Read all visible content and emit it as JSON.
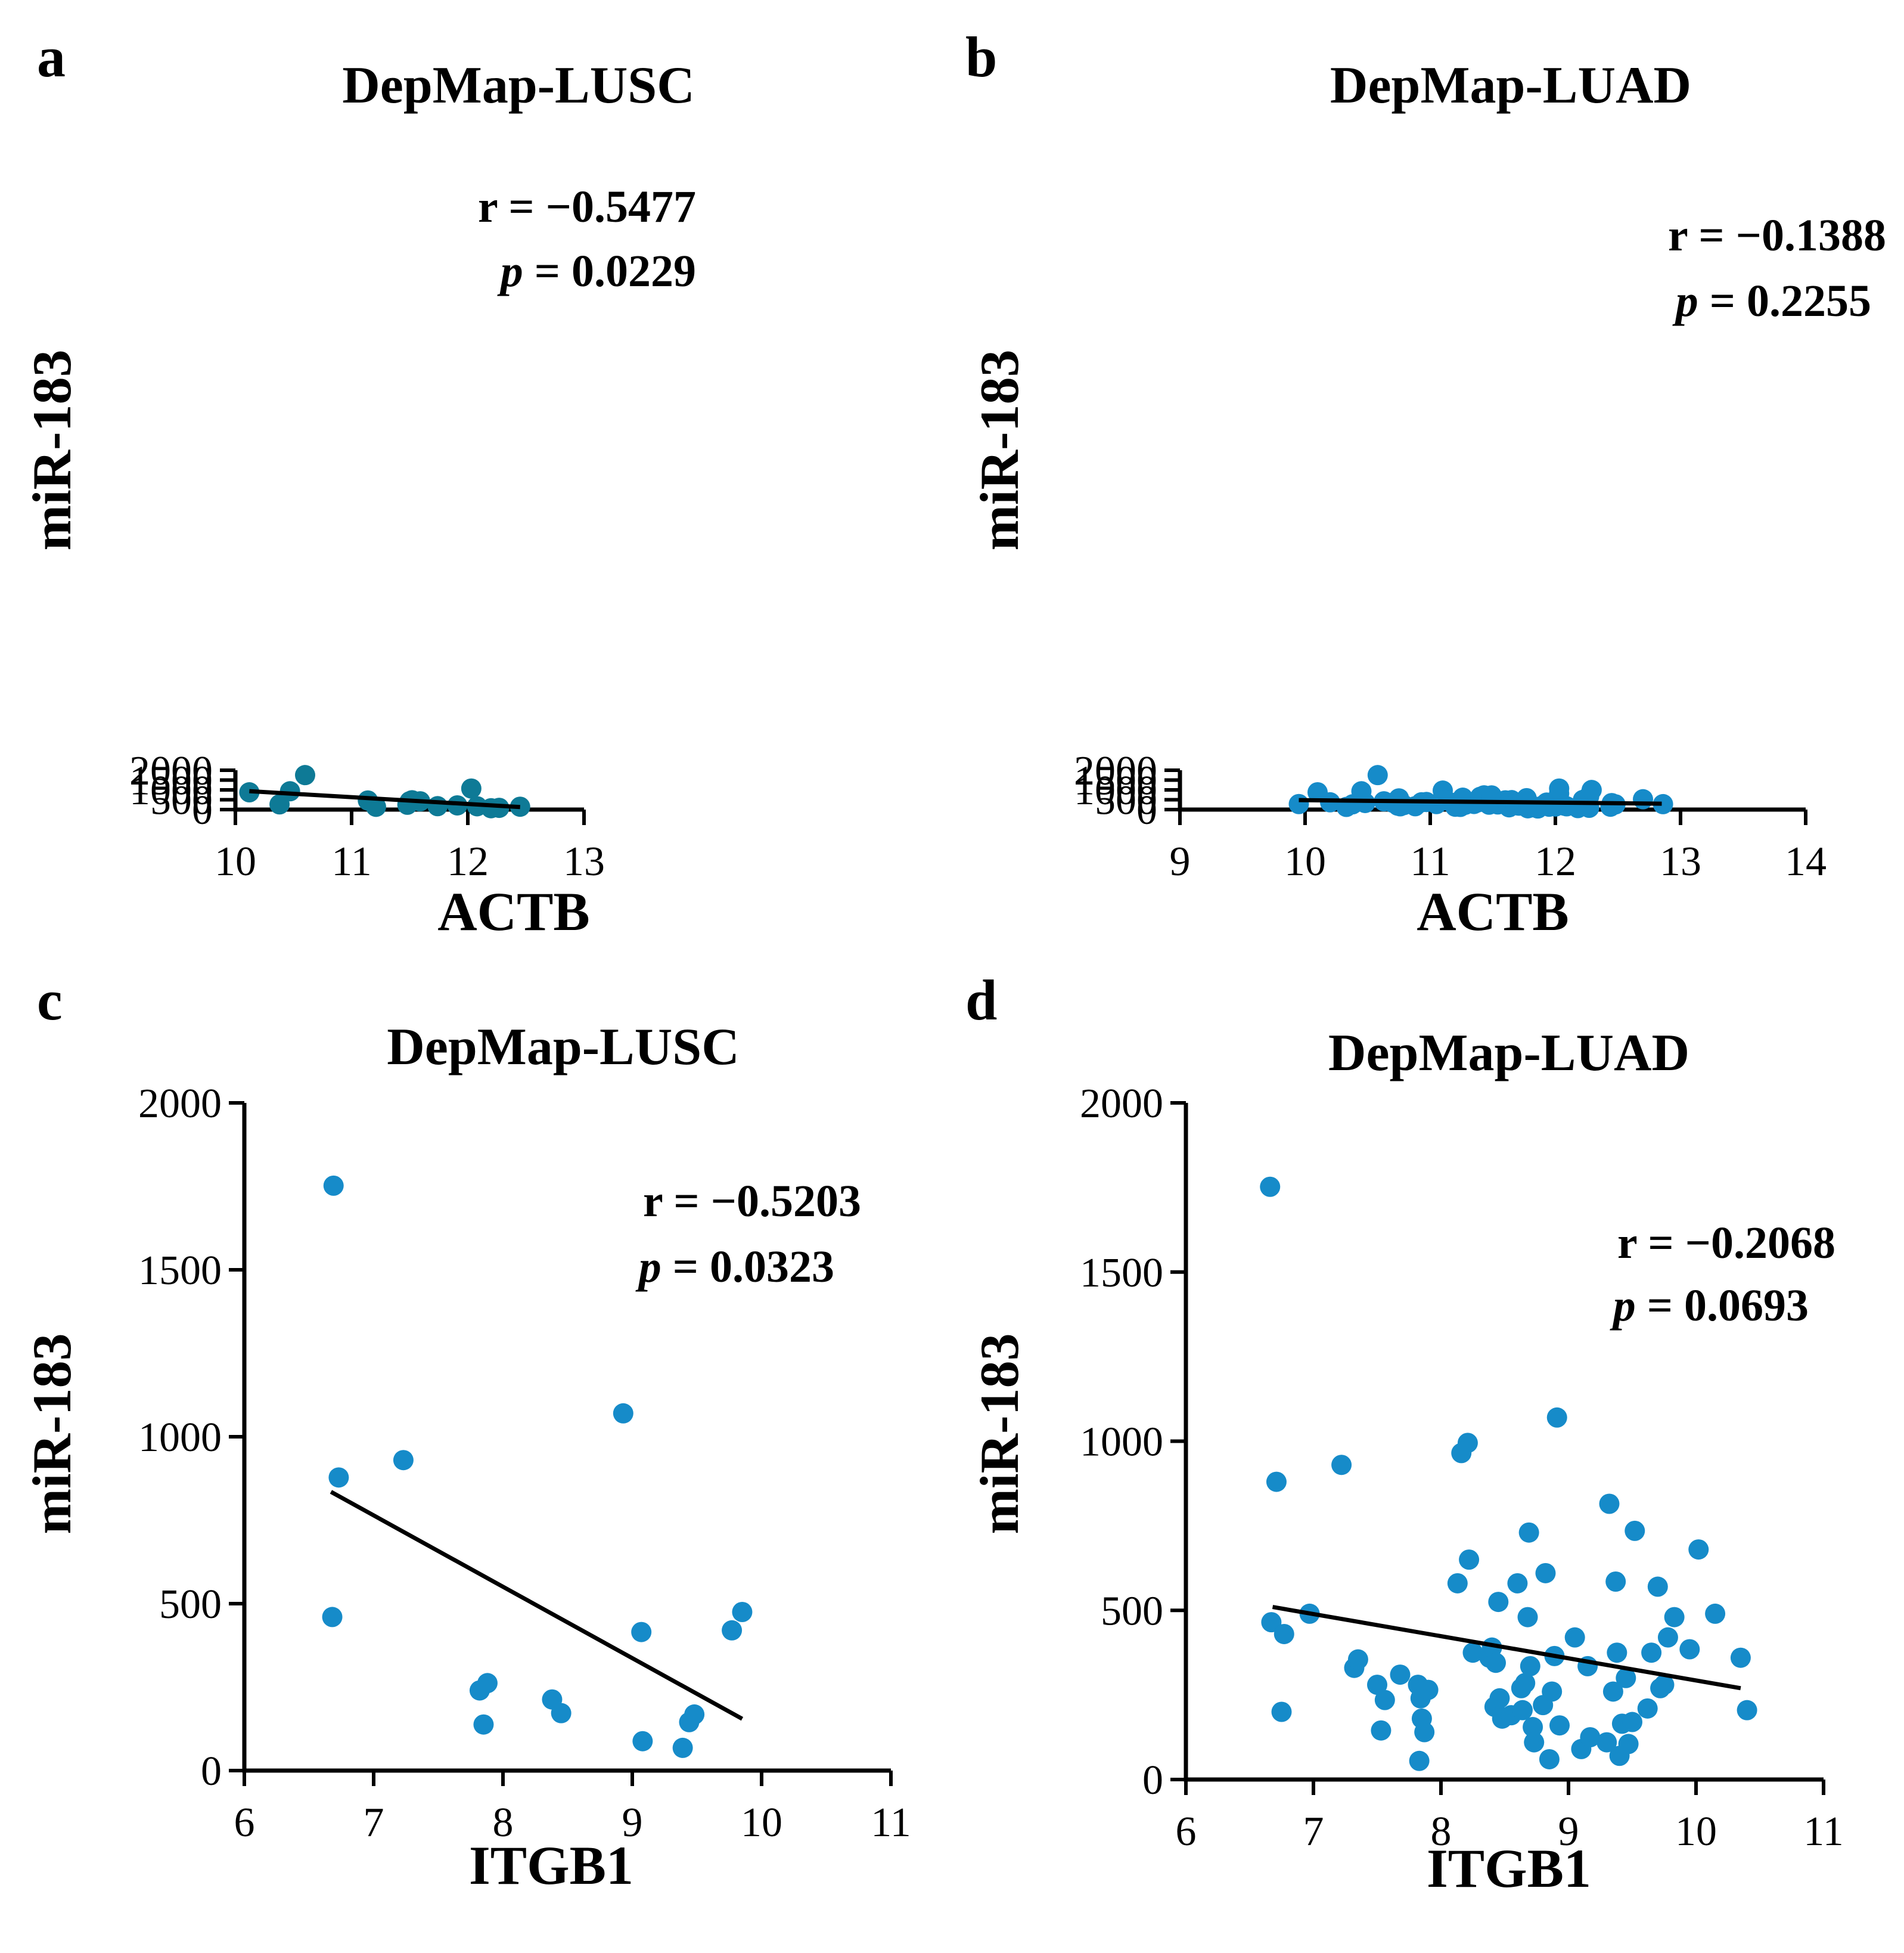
{
  "chart_data": [
    {
      "letter": "a",
      "type": "scatter",
      "title": "DepMap-LUSC",
      "xlabel": "ACTB",
      "ylabel": "miR-183",
      "xlim": [
        10,
        13
      ],
      "ylim": [
        0,
        2000
      ],
      "xticks": [
        10,
        11,
        12,
        13
      ],
      "yticks": [
        0,
        500,
        1000,
        1500,
        2000
      ],
      "point_color": "#0e7a96",
      "r_text": "r = −0.5477",
      "p_label": "p",
      "p_text": " = 0.0229",
      "fit_line": [
        [
          10.12,
          935
        ],
        [
          12.45,
          128
        ]
      ],
      "points": [
        [
          10.12,
          878
        ],
        [
          10.38,
          265
        ],
        [
          10.47,
          930
        ],
        [
          10.6,
          1752
        ],
        [
          11.14,
          462
        ],
        [
          11.21,
          142
        ],
        [
          11.48,
          245
        ],
        [
          11.5,
          420
        ],
        [
          11.52,
          475
        ],
        [
          11.59,
          420
        ],
        [
          11.74,
          173
        ],
        [
          11.91,
          213
        ],
        [
          12.03,
          1070
        ],
        [
          12.08,
          168
        ],
        [
          12.2,
          70
        ],
        [
          12.27,
          88
        ],
        [
          12.45,
          145
        ]
      ]
    },
    {
      "letter": "b",
      "type": "scatter",
      "title": "DepMap-LUAD",
      "xlabel": "ACTB",
      "ylabel": "miR-183",
      "xlim": [
        9,
        14
      ],
      "ylim": [
        0,
        2000
      ],
      "xticks": [
        9,
        10,
        11,
        12,
        13,
        14
      ],
      "yticks": [
        0,
        500,
        1000,
        1500,
        2000
      ],
      "point_color": "#168bc9",
      "r_text": "r = −0.1388",
      "p_label": "p",
      "p_text": " = 0.2255",
      "fit_line": [
        [
          9.95,
          480
        ],
        [
          12.85,
          300
        ]
      ],
      "points": [
        [
          9.95,
          280
        ],
        [
          10.1,
          880
        ],
        [
          10.2,
          370
        ],
        [
          10.33,
          135
        ],
        [
          10.38,
          268
        ],
        [
          10.45,
          930
        ],
        [
          10.48,
          335
        ],
        [
          10.58,
          1752
        ],
        [
          10.63,
          420
        ],
        [
          10.7,
          350
        ],
        [
          10.74,
          200
        ],
        [
          10.75,
          570
        ],
        [
          10.76,
          165
        ],
        [
          10.79,
          230
        ],
        [
          10.88,
          170
        ],
        [
          10.93,
          370
        ],
        [
          10.97,
          385
        ],
        [
          11.05,
          280
        ],
        [
          11.1,
          965
        ],
        [
          11.12,
          495
        ],
        [
          11.13,
          465
        ],
        [
          11.2,
          145
        ],
        [
          11.22,
          385
        ],
        [
          11.24,
          135
        ],
        [
          11.26,
          605
        ],
        [
          11.28,
          245
        ],
        [
          11.35,
          285
        ],
        [
          11.38,
          365
        ],
        [
          11.4,
          650
        ],
        [
          11.43,
          725
        ],
        [
          11.46,
          300
        ],
        [
          11.47,
          250
        ],
        [
          11.49,
          720
        ],
        [
          11.49,
          415
        ],
        [
          11.52,
          480
        ],
        [
          11.53,
          335
        ],
        [
          11.54,
          260
        ],
        [
          11.58,
          405
        ],
        [
          11.6,
          470
        ],
        [
          11.61,
          380
        ],
        [
          11.62,
          310
        ],
        [
          11.63,
          115
        ],
        [
          11.65,
          480
        ],
        [
          11.67,
          355
        ],
        [
          11.68,
          275
        ],
        [
          11.7,
          210
        ],
        [
          11.71,
          200
        ],
        [
          11.73,
          375
        ],
        [
          11.75,
          175
        ],
        [
          11.77,
          580
        ],
        [
          11.78,
          65
        ],
        [
          11.79,
          200
        ],
        [
          11.8,
          105
        ],
        [
          11.82,
          180
        ],
        [
          11.86,
          55
        ],
        [
          11.9,
          210
        ],
        [
          11.93,
          355
        ],
        [
          11.95,
          145
        ],
        [
          12.0,
          155
        ],
        [
          12.03,
          1070
        ],
        [
          12.03,
          815
        ],
        [
          12.06,
          255
        ],
        [
          12.07,
          200
        ],
        [
          12.09,
          165
        ],
        [
          12.18,
          75
        ],
        [
          12.22,
          490
        ],
        [
          12.25,
          580
        ],
        [
          12.27,
          90
        ],
        [
          12.27,
          675
        ],
        [
          12.29,
          995
        ],
        [
          12.44,
          145
        ],
        [
          12.45,
          330
        ],
        [
          12.48,
          265
        ],
        [
          12.7,
          525
        ],
        [
          12.86,
          275
        ]
      ]
    },
    {
      "letter": "c",
      "type": "scatter",
      "title": "DepMap-LUSC",
      "xlabel": "ITGB1",
      "ylabel": "miR-183",
      "xlim": [
        6,
        11
      ],
      "ylim": [
        0,
        2000
      ],
      "xticks": [
        6,
        7,
        8,
        9,
        10,
        11
      ],
      "yticks": [
        0,
        500,
        1000,
        1500,
        2000
      ],
      "point_color": "#168bc9",
      "r_text": "r = −0.5203",
      "p_label": "p",
      "p_text": " = 0.0323",
      "fit_line": [
        [
          6.67,
          835
        ],
        [
          9.85,
          155
        ]
      ],
      "points": [
        [
          6.68,
          460
        ],
        [
          6.69,
          1752
        ],
        [
          6.73,
          878
        ],
        [
          7.23,
          930
        ],
        [
          7.82,
          240
        ],
        [
          7.85,
          138
        ],
        [
          7.88,
          262
        ],
        [
          8.38,
          213
        ],
        [
          8.45,
          172
        ],
        [
          8.93,
          1070
        ],
        [
          9.07,
          415
        ],
        [
          9.08,
          88
        ],
        [
          9.39,
          68
        ],
        [
          9.44,
          145
        ],
        [
          9.48,
          168
        ],
        [
          9.77,
          420
        ],
        [
          9.85,
          475
        ]
      ]
    },
    {
      "letter": "d",
      "type": "scatter",
      "title": "DepMap-LUAD",
      "xlabel": "ITGB1",
      "ylabel": "miR-183",
      "xlim": [
        6,
        11
      ],
      "ylim": [
        0,
        2000
      ],
      "xticks": [
        6,
        7,
        8,
        9,
        10,
        11
      ],
      "yticks": [
        0,
        500,
        1000,
        1500,
        2000
      ],
      "point_color": "#168bc9",
      "r_text": "r = −0.2068",
      "p_label": "p",
      "p_text": " = 0.0693",
      "fit_line": [
        [
          6.68,
          510
        ],
        [
          10.35,
          270
        ]
      ],
      "points": [
        [
          6.66,
          1752
        ],
        [
          6.67,
          465
        ],
        [
          6.71,
          880
        ],
        [
          6.75,
          200
        ],
        [
          6.77,
          430
        ],
        [
          6.97,
          490
        ],
        [
          7.22,
          930
        ],
        [
          7.32,
          330
        ],
        [
          7.35,
          355
        ],
        [
          7.5,
          280
        ],
        [
          7.53,
          145
        ],
        [
          7.56,
          235
        ],
        [
          7.68,
          310
        ],
        [
          7.82,
          280
        ],
        [
          7.83,
          55
        ],
        [
          7.84,
          240
        ],
        [
          7.85,
          180
        ],
        [
          7.87,
          140
        ],
        [
          7.9,
          265
        ],
        [
          8.13,
          580
        ],
        [
          8.16,
          965
        ],
        [
          8.21,
          995
        ],
        [
          8.22,
          650
        ],
        [
          8.25,
          375
        ],
        [
          8.38,
          360
        ],
        [
          8.4,
          390
        ],
        [
          8.42,
          215
        ],
        [
          8.43,
          345
        ],
        [
          8.45,
          525
        ],
        [
          8.46,
          240
        ],
        [
          8.48,
          180
        ],
        [
          8.55,
          190
        ],
        [
          8.6,
          580
        ],
        [
          8.63,
          270
        ],
        [
          8.64,
          205
        ],
        [
          8.66,
          285
        ],
        [
          8.68,
          480
        ],
        [
          8.69,
          730
        ],
        [
          8.7,
          335
        ],
        [
          8.72,
          155
        ],
        [
          8.73,
          110
        ],
        [
          8.8,
          220
        ],
        [
          8.82,
          610
        ],
        [
          8.85,
          60
        ],
        [
          8.87,
          260
        ],
        [
          8.89,
          365
        ],
        [
          8.91,
          1070
        ],
        [
          8.93,
          160
        ],
        [
          9.05,
          420
        ],
        [
          9.1,
          90
        ],
        [
          9.15,
          335
        ],
        [
          9.17,
          125
        ],
        [
          9.3,
          110
        ],
        [
          9.32,
          815
        ],
        [
          9.35,
          260
        ],
        [
          9.37,
          585
        ],
        [
          9.38,
          375
        ],
        [
          9.4,
          70
        ],
        [
          9.42,
          165
        ],
        [
          9.45,
          300
        ],
        [
          9.47,
          105
        ],
        [
          9.5,
          170
        ],
        [
          9.52,
          735
        ],
        [
          9.62,
          210
        ],
        [
          9.65,
          375
        ],
        [
          9.7,
          570
        ],
        [
          9.72,
          270
        ],
        [
          9.75,
          280
        ],
        [
          9.78,
          420
        ],
        [
          9.83,
          480
        ],
        [
          9.95,
          385
        ],
        [
          10.02,
          680
        ],
        [
          10.15,
          490
        ],
        [
          10.35,
          360
        ],
        [
          10.4,
          205
        ]
      ]
    }
  ]
}
